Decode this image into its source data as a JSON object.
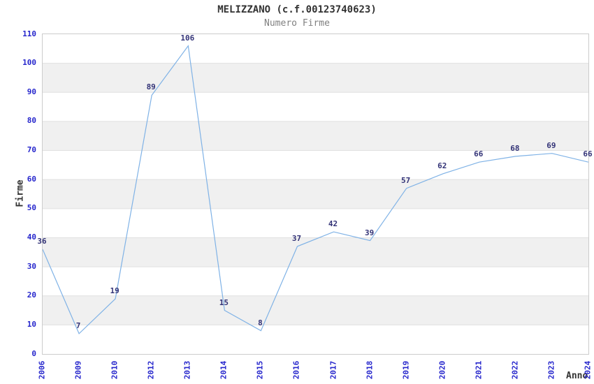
{
  "chart": {
    "title": "MELIZZANO (c.f.00123740623)",
    "subtitle": "Numero Firme",
    "ylabel": "Firme",
    "xlabel": "Anno"
  },
  "chart_data": {
    "type": "line",
    "title": "MELIZZANO (c.f.00123740623)",
    "subtitle": "Numero Firme",
    "xlabel": "Anno",
    "ylabel": "Firme",
    "categories": [
      "2006",
      "2009",
      "2010",
      "2012",
      "2013",
      "2014",
      "2015",
      "2016",
      "2017",
      "2018",
      "2019",
      "2020",
      "2021",
      "2022",
      "2023",
      "2024"
    ],
    "values": [
      36,
      7,
      19,
      89,
      106,
      15,
      8,
      37,
      42,
      39,
      57,
      62,
      66,
      68,
      69,
      66
    ],
    "ylim": [
      0,
      110
    ],
    "ytick_step": 10,
    "grid": "horizontal",
    "alternating_bands": true,
    "legend": "none",
    "colors": {
      "line": "#7fb2e6",
      "tick_label": "#2626cc",
      "data_label": "#333377",
      "band": "#f0f0f0",
      "grid": "#e0e0e0",
      "border": "#cccccc",
      "title": "#333333",
      "subtitle": "#808080"
    }
  }
}
